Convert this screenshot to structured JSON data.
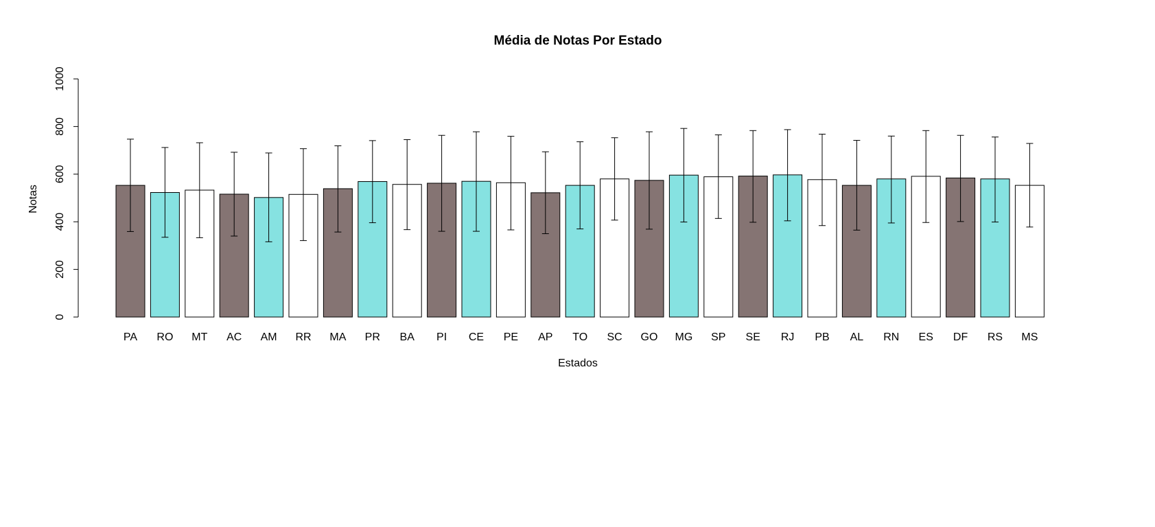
{
  "chart_data": {
    "type": "bar",
    "title": "Média de Notas Por Estado",
    "xlabel": "Estados",
    "ylabel": "Notas",
    "ylim": [
      0,
      1000
    ],
    "yticks": [
      0,
      200,
      400,
      600,
      800,
      1000
    ],
    "grid": false,
    "legend": "none",
    "categories": [
      "PA",
      "RO",
      "MT",
      "AC",
      "AM",
      "RR",
      "MA",
      "PR",
      "BA",
      "PI",
      "CE",
      "PE",
      "AP",
      "TO",
      "SC",
      "GO",
      "MG",
      "SP",
      "SE",
      "RJ",
      "PB",
      "AL",
      "RN",
      "ES",
      "DF",
      "RS",
      "MS"
    ],
    "values": [
      553,
      523,
      533,
      516,
      502,
      515,
      539,
      569,
      557,
      562,
      570,
      564,
      522,
      553,
      580,
      574,
      596,
      589,
      592,
      597,
      577,
      553,
      580,
      591,
      584,
      580,
      553
    ],
    "err_low": [
      359,
      335,
      333,
      340,
      316,
      321,
      357,
      396,
      367,
      360,
      360,
      366,
      350,
      370,
      407,
      369,
      399,
      414,
      398,
      404,
      384,
      365,
      395,
      397,
      401,
      399,
      378
    ],
    "err_high": [
      747,
      712,
      732,
      692,
      689,
      707,
      719,
      741,
      745,
      763,
      778,
      759,
      694,
      736,
      753,
      778,
      792,
      765,
      783,
      787,
      768,
      742,
      760,
      783,
      763,
      756,
      729
    ],
    "colors": [
      "#857473",
      "#86e2e1",
      "#ffffff"
    ]
  }
}
